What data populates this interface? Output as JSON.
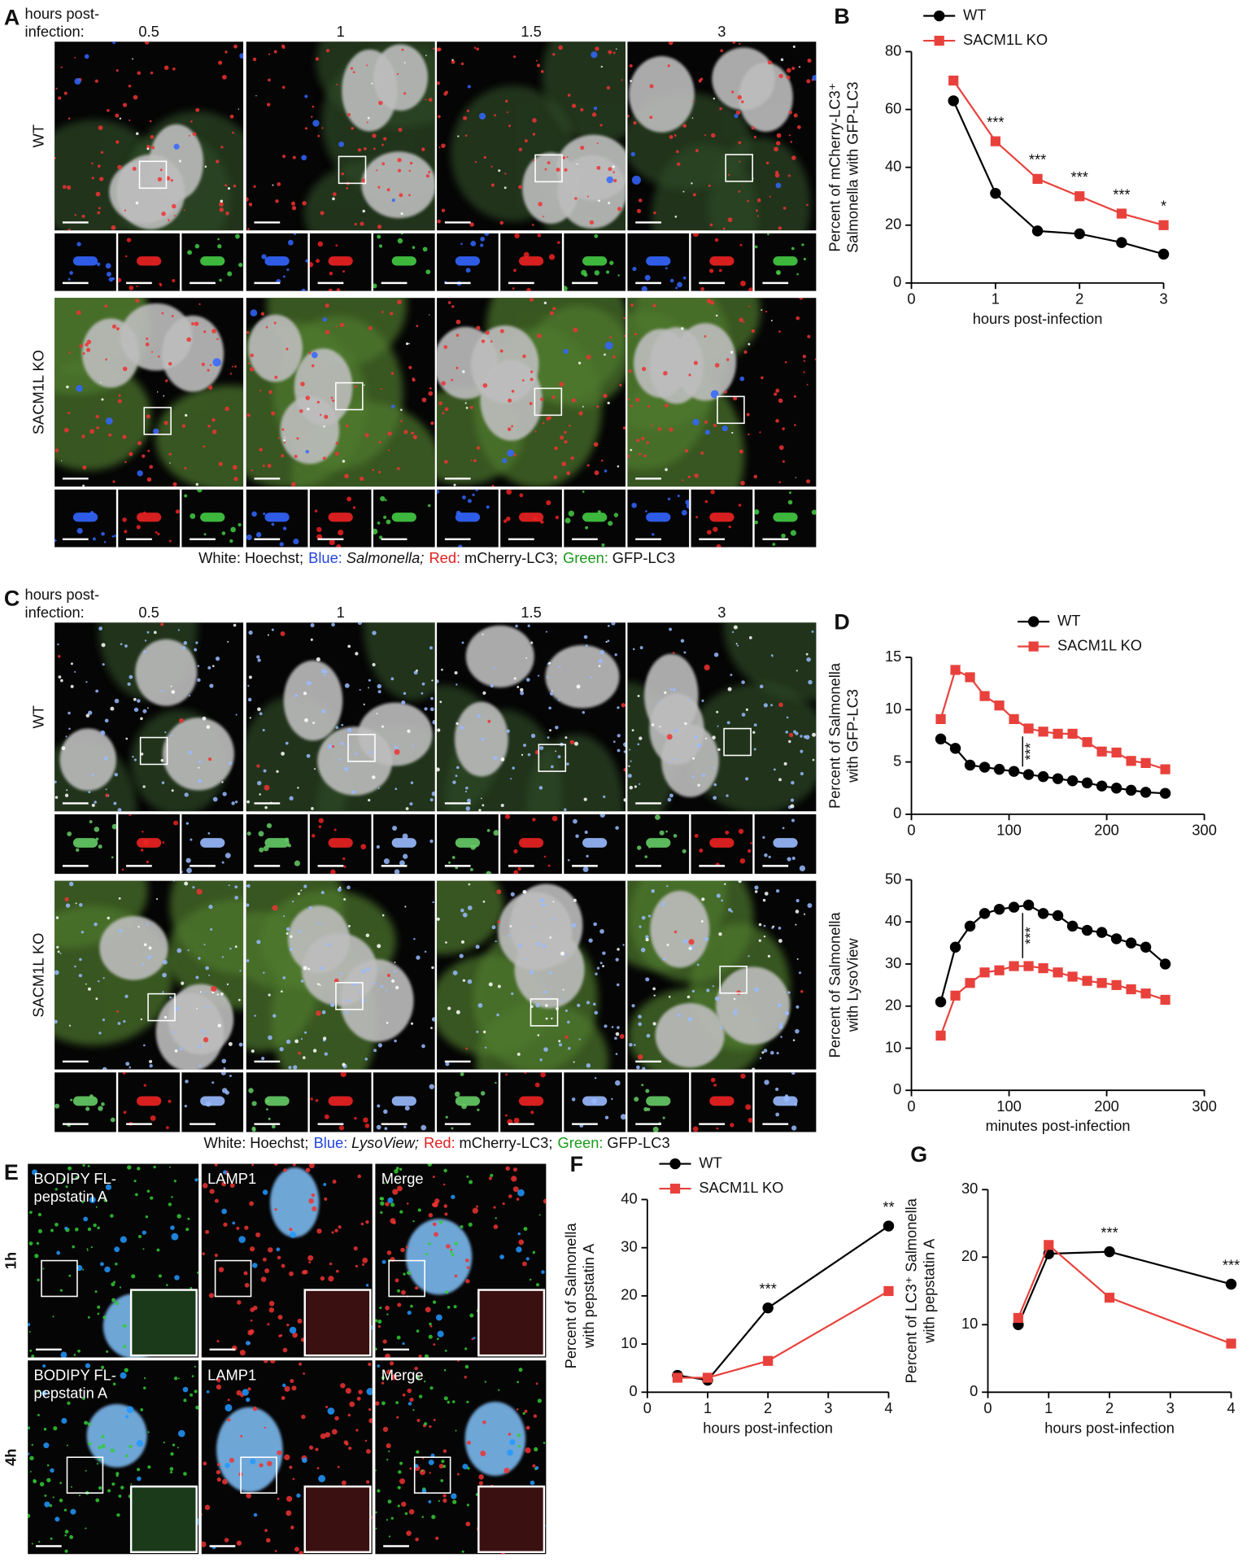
{
  "panel_a": {
    "letter": "A",
    "time_label": [
      "hours post-",
      "infection:"
    ],
    "times": [
      "0.5",
      "1",
      "1.5",
      "3"
    ],
    "rows": [
      "WT",
      "SACM1L KO"
    ],
    "caption": [
      "White:",
      "Hoechst;",
      "Blue:",
      "Salmonella;",
      "Red:",
      "mCherry-LC3;",
      "Green:",
      "GFP-LC3"
    ]
  },
  "panel_c": {
    "letter": "C",
    "time_label": [
      "hours post-",
      "infection:"
    ],
    "times": [
      "0.5",
      "1",
      "1.5",
      "3"
    ],
    "rows": [
      "WT",
      "SACM1L KO"
    ],
    "caption": [
      "White:",
      "Hoechst;",
      "Blue:",
      "LysoView;",
      "Red:",
      "mCherry-LC3;",
      "Green:",
      "GFP-LC3"
    ]
  },
  "panel_e": {
    "letter": "E",
    "rows": [
      "1h",
      "4h"
    ],
    "columns": [
      [
        "BODIPY FL-",
        "pepstatin A"
      ],
      [
        "LAMP1"
      ],
      [
        "Merge"
      ]
    ]
  },
  "chart_data": [
    {
      "type": "line",
      "panel": "B",
      "xlabel": "hours post-infection",
      "ylabel": [
        "Percent of mCherry-LC3⁺",
        "Salmonella with GFP-LC3"
      ],
      "xlim": [
        0,
        3
      ],
      "xticks": [
        0,
        1,
        2,
        3
      ],
      "ylim": [
        0,
        80
      ],
      "yticks": [
        0,
        20,
        40,
        60,
        80
      ],
      "legend": "top-left",
      "series": [
        {
          "name": "WT",
          "color": "#000000",
          "marker": "circle",
          "x": [
            0.5,
            1,
            1.5,
            2,
            2.5,
            3
          ],
          "values": [
            63,
            31,
            18,
            17,
            14,
            10
          ]
        },
        {
          "name": "SACM1L KO",
          "color": "#e8413c",
          "marker": "square",
          "x": [
            0.5,
            1,
            1.5,
            2,
            2.5,
            3
          ],
          "values": [
            70,
            49,
            36,
            30,
            24,
            20
          ]
        }
      ],
      "annotations": [
        {
          "x": 1,
          "text": "***"
        },
        {
          "x": 1.5,
          "text": "***"
        },
        {
          "x": 2,
          "text": "***"
        },
        {
          "x": 2.5,
          "text": "***"
        },
        {
          "x": 3,
          "text": "*"
        }
      ]
    },
    {
      "type": "line",
      "panel": "D",
      "ylabel": [
        "Percent of Salmonella",
        "with GFP-LC3"
      ],
      "xlim": [
        0,
        300
      ],
      "xticks": [
        0,
        100,
        200,
        300
      ],
      "ylim": [
        0,
        15
      ],
      "yticks": [
        0,
        5,
        10,
        15
      ],
      "legend": "top-right",
      "series": [
        {
          "name": "WT",
          "color": "#000000",
          "marker": "circle",
          "x": [
            30,
            45,
            60,
            75,
            90,
            105,
            120,
            135,
            150,
            165,
            180,
            195,
            210,
            225,
            240,
            260
          ],
          "values": [
            7.2,
            6.3,
            4.7,
            4.5,
            4.3,
            4.1,
            3.8,
            3.6,
            3.4,
            3.2,
            3.0,
            2.7,
            2.5,
            2.3,
            2.1,
            2.0
          ]
        },
        {
          "name": "SACM1L KO",
          "color": "#e8413c",
          "marker": "square",
          "x": [
            30,
            45,
            60,
            75,
            90,
            105,
            120,
            135,
            150,
            165,
            180,
            195,
            210,
            225,
            240,
            260
          ],
          "values": [
            9.1,
            13.8,
            13.1,
            11.3,
            10.4,
            9.1,
            8.2,
            7.9,
            7.7,
            7.7,
            6.9,
            6.0,
            5.9,
            5.1,
            4.9,
            4.3
          ]
        }
      ],
      "annotations": [
        {
          "x": 120,
          "text": "***",
          "style": "bracket"
        }
      ]
    },
    {
      "type": "line",
      "xlabel": "minutes post-infection",
      "ylabel": [
        "Percent of Salmonella",
        "with LysoView"
      ],
      "xlim": [
        0,
        300
      ],
      "xticks": [
        0,
        100,
        200,
        300
      ],
      "ylim": [
        0,
        50
      ],
      "yticks": [
        0,
        10,
        20,
        30,
        40,
        50
      ],
      "series": [
        {
          "name": "WT",
          "color": "#000000",
          "marker": "circle",
          "x": [
            30,
            45,
            60,
            75,
            90,
            105,
            120,
            135,
            150,
            165,
            180,
            195,
            210,
            225,
            240,
            260
          ],
          "values": [
            21,
            34,
            39,
            42,
            43,
            43.5,
            44,
            42,
            41.5,
            39,
            38,
            37.5,
            36,
            35,
            34,
            30
          ]
        },
        {
          "name": "SACM1L KO",
          "color": "#e8413c",
          "marker": "square",
          "x": [
            30,
            45,
            60,
            75,
            90,
            105,
            120,
            135,
            150,
            165,
            180,
            195,
            210,
            225,
            240,
            260
          ],
          "values": [
            13,
            22.5,
            25.5,
            28,
            28.5,
            29.5,
            29.5,
            29,
            28,
            27,
            26,
            25.5,
            25,
            24,
            23,
            21.5
          ]
        }
      ],
      "annotations": [
        {
          "x": 120,
          "text": "***",
          "style": "bracket"
        }
      ]
    },
    {
      "type": "line",
      "panel": "F",
      "xlabel": "hours post-infection",
      "ylabel": [
        "Percent of Salmonella",
        "with pepstatin A"
      ],
      "xlim": [
        0,
        4
      ],
      "xticks": [
        0,
        1,
        2,
        3,
        4
      ],
      "ylim": [
        0,
        40
      ],
      "yticks": [
        0,
        10,
        20,
        30,
        40
      ],
      "legend": "top-left",
      "series": [
        {
          "name": "WT",
          "color": "#000000",
          "marker": "circle",
          "x": [
            0.5,
            1,
            2,
            4
          ],
          "values": [
            3.5,
            2.5,
            17.5,
            34.5
          ]
        },
        {
          "name": "SACM1L KO",
          "color": "#e8413c",
          "marker": "square",
          "x": [
            0.5,
            1,
            2,
            4
          ],
          "values": [
            3,
            3,
            6.5,
            21
          ]
        }
      ],
      "annotations": [
        {
          "x": 2,
          "text": "***"
        },
        {
          "x": 4,
          "text": "**"
        }
      ]
    },
    {
      "type": "line",
      "panel": "G",
      "xlabel": "hours post-infection",
      "ylabel": [
        "Percent of LC3⁺ Salmonella",
        "with pepstatin A"
      ],
      "xlim": [
        0,
        4
      ],
      "xticks": [
        0,
        1,
        2,
        3,
        4
      ],
      "ylim": [
        0,
        30
      ],
      "yticks": [
        0,
        10,
        20,
        30
      ],
      "series": [
        {
          "name": "WT",
          "color": "#000000",
          "marker": "circle",
          "x": [
            0.5,
            1,
            2,
            4
          ],
          "values": [
            10,
            20.5,
            20.8,
            16
          ]
        },
        {
          "name": "SACM1L KO",
          "color": "#e8413c",
          "marker": "square",
          "x": [
            0.5,
            1,
            2,
            4
          ],
          "values": [
            11,
            21.8,
            14,
            7.2
          ]
        }
      ],
      "annotations": [
        {
          "x": 2,
          "text": "***"
        },
        {
          "x": 4,
          "text": "***"
        }
      ]
    }
  ]
}
